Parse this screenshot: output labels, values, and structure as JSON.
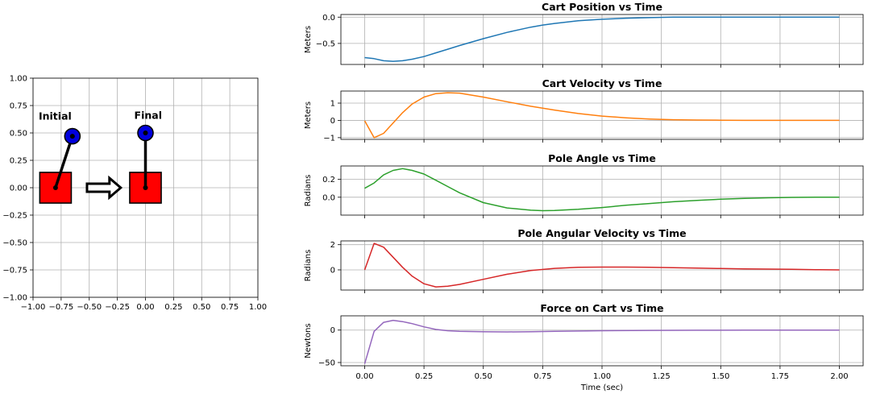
{
  "chart_data": [
    {
      "type": "diagram",
      "xlim": [
        -1.0,
        1.0
      ],
      "ylim": [
        -1.0,
        1.0
      ],
      "grid": true,
      "xticks": [
        "−1.00",
        "−0.75",
        "−0.50",
        "−0.25",
        "0.00",
        "0.25",
        "0.50",
        "0.75",
        "1.00"
      ],
      "yticks": [
        "1.00",
        "0.75",
        "0.50",
        "0.25",
        "0.00",
        "−0.25",
        "−0.50",
        "−0.75",
        "−1.00"
      ],
      "xtick_values": [
        -1.0,
        -0.75,
        -0.5,
        -0.25,
        0.0,
        0.25,
        0.5,
        0.75,
        1.0
      ],
      "ytick_values": [
        1.0,
        0.75,
        0.5,
        0.25,
        0.0,
        -0.25,
        -0.5,
        -0.75,
        -1.0
      ],
      "states": [
        {
          "label": "Initial",
          "cart_x": -0.8,
          "pole_tip": [
            -0.65,
            0.47
          ],
          "label_pos": [
            -0.95,
            0.62
          ]
        },
        {
          "label": "Final",
          "cart_x": 0.0,
          "pole_tip": [
            0.0,
            0.5
          ],
          "label_pos": [
            -0.1,
            0.63
          ]
        }
      ],
      "cart_half_width": 0.14,
      "cart_half_height": 0.14,
      "colors": {
        "cart": "#ff0000",
        "bob": "#0000dd",
        "pole": "#000000"
      }
    },
    {
      "type": "line",
      "title": "Cart Position vs Time",
      "ylabel": "Meters",
      "color": "#1f77b4",
      "ylim": [
        -0.9,
        0.05
      ],
      "yticks": [
        {
          "v": 0.0,
          "l": "0.0"
        },
        {
          "v": -0.5,
          "l": "−0.5"
        }
      ],
      "x": [
        0,
        0.04,
        0.08,
        0.12,
        0.16,
        0.2,
        0.25,
        0.3,
        0.35,
        0.4,
        0.5,
        0.6,
        0.7,
        0.75,
        0.8,
        0.9,
        1.0,
        1.1,
        1.2,
        1.3,
        1.4,
        1.5,
        1.6,
        1.7,
        1.8,
        1.9,
        2.0
      ],
      "y": [
        -0.77,
        -0.79,
        -0.83,
        -0.84,
        -0.83,
        -0.8,
        -0.75,
        -0.68,
        -0.61,
        -0.54,
        -0.41,
        -0.29,
        -0.19,
        -0.15,
        -0.12,
        -0.07,
        -0.04,
        -0.02,
        -0.01,
        0.0,
        0.0,
        0.0,
        0.0,
        0.0,
        0.0,
        0.0,
        0.0
      ]
    },
    {
      "type": "line",
      "title": "Cart Velocity vs Time",
      "ylabel": "Meters",
      "color": "#ff7f0e",
      "ylim": [
        -1.1,
        1.7
      ],
      "yticks": [
        {
          "v": 1,
          "l": "1"
        },
        {
          "v": 0,
          "l": "0"
        },
        {
          "v": -1,
          "l": "−1"
        }
      ],
      "x": [
        0,
        0.04,
        0.08,
        0.12,
        0.16,
        0.2,
        0.25,
        0.3,
        0.35,
        0.4,
        0.5,
        0.6,
        0.7,
        0.8,
        0.9,
        1.0,
        1.1,
        1.2,
        1.3,
        1.4,
        1.5,
        1.6,
        1.7,
        1.8,
        1.9,
        2.0
      ],
      "y": [
        -0.02,
        -1.0,
        -0.75,
        -0.15,
        0.45,
        0.95,
        1.35,
        1.55,
        1.6,
        1.58,
        1.35,
        1.08,
        0.82,
        0.6,
        0.4,
        0.25,
        0.15,
        0.08,
        0.04,
        0.02,
        0.01,
        0.0,
        0.0,
        0.0,
        0.0,
        0.0
      ]
    },
    {
      "type": "line",
      "title": "Pole Angle vs Time",
      "ylabel": "Radians",
      "color": "#2ca02c",
      "ylim": [
        -0.2,
        0.35
      ],
      "yticks": [
        {
          "v": 0.2,
          "l": "0.2"
        },
        {
          "v": 0.0,
          "l": "0.0"
        }
      ],
      "x": [
        0,
        0.04,
        0.08,
        0.12,
        0.16,
        0.2,
        0.25,
        0.3,
        0.35,
        0.4,
        0.5,
        0.6,
        0.7,
        0.75,
        0.8,
        0.9,
        1.0,
        1.1,
        1.2,
        1.3,
        1.4,
        1.5,
        1.6,
        1.7,
        1.8,
        1.9,
        2.0
      ],
      "y": [
        0.1,
        0.16,
        0.25,
        0.3,
        0.32,
        0.3,
        0.26,
        0.19,
        0.12,
        0.05,
        -0.06,
        -0.12,
        -0.145,
        -0.15,
        -0.148,
        -0.135,
        -0.115,
        -0.09,
        -0.07,
        -0.05,
        -0.035,
        -0.022,
        -0.013,
        -0.006,
        -0.002,
        0.0,
        0.0
      ]
    },
    {
      "type": "line",
      "title": "Pole Angular Velocity vs Time",
      "ylabel": "Radians",
      "color": "#d62728",
      "ylim": [
        -1.6,
        2.3
      ],
      "yticks": [
        {
          "v": 2,
          "l": "2"
        },
        {
          "v": 0,
          "l": "0"
        }
      ],
      "x": [
        0,
        0.04,
        0.08,
        0.12,
        0.16,
        0.2,
        0.25,
        0.3,
        0.35,
        0.4,
        0.5,
        0.6,
        0.7,
        0.8,
        0.9,
        1.0,
        1.1,
        1.2,
        1.3,
        1.4,
        1.5,
        1.6,
        1.7,
        1.8,
        1.9,
        2.0
      ],
      "y": [
        0.0,
        2.1,
        1.8,
        1.0,
        0.2,
        -0.5,
        -1.1,
        -1.35,
        -1.3,
        -1.15,
        -0.75,
        -0.35,
        -0.05,
        0.12,
        0.2,
        0.22,
        0.22,
        0.2,
        0.17,
        0.14,
        0.11,
        0.08,
        0.06,
        0.04,
        0.02,
        0.0
      ]
    },
    {
      "type": "line",
      "title": "Force on Cart vs Time",
      "ylabel": "Newtons",
      "color": "#9467bd",
      "xlabel": "Time (sec)",
      "ylim": [
        -55,
        22
      ],
      "yticks": [
        {
          "v": 0,
          "l": "0"
        },
        {
          "v": -50,
          "l": "−50"
        }
      ],
      "x": [
        0,
        0.04,
        0.08,
        0.12,
        0.16,
        0.2,
        0.25,
        0.3,
        0.35,
        0.4,
        0.5,
        0.6,
        0.7,
        0.8,
        1.0,
        1.2,
        1.4,
        1.6,
        1.8,
        2.0
      ],
      "y": [
        -52,
        -2,
        12,
        15,
        13,
        10,
        5,
        1,
        -1,
        -2,
        -2.5,
        -2.8,
        -2.5,
        -2,
        -1,
        -0.5,
        -0.2,
        0,
        0,
        0
      ]
    }
  ],
  "shared_x": {
    "xlim": [
      -0.1,
      2.1
    ],
    "xticks": [
      {
        "v": 0.0,
        "l": "0.00"
      },
      {
        "v": 0.25,
        "l": "0.25"
      },
      {
        "v": 0.5,
        "l": "0.50"
      },
      {
        "v": 0.75,
        "l": "0.75"
      },
      {
        "v": 1.0,
        "l": "1.00"
      },
      {
        "v": 1.25,
        "l": "1.25"
      },
      {
        "v": 1.5,
        "l": "1.50"
      },
      {
        "v": 1.75,
        "l": "1.75"
      },
      {
        "v": 2.0,
        "l": "2.00"
      }
    ]
  }
}
